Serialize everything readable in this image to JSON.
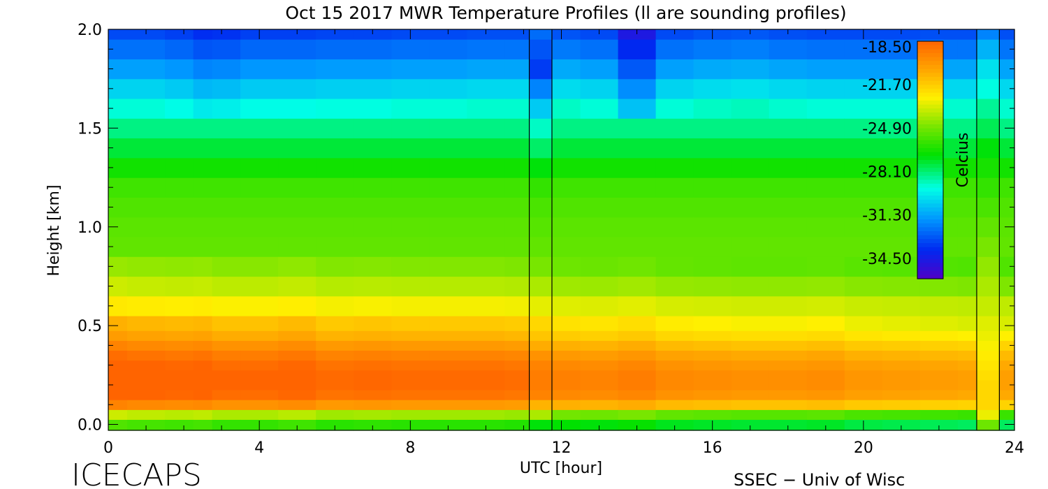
{
  "chart_data": {
    "type": "heatmap",
    "title": "Oct 15 2017 MWR Temperature Profiles (ll are sounding profiles)",
    "xlabel": "UTC [hour]",
    "ylabel": "Height [km]",
    "xlim": [
      0,
      24
    ],
    "ylim": [
      -0.03,
      2.0
    ],
    "xticks": [
      "0",
      "4",
      "8",
      "12",
      "16",
      "20",
      "24"
    ],
    "xtick_values": [
      0,
      4,
      8,
      12,
      16,
      20,
      24
    ],
    "yticks": [
      "0.0",
      "0.5",
      "1.0",
      "1.5",
      "2.0"
    ],
    "ytick_values": [
      0.0,
      0.5,
      1.0,
      1.5,
      2.0
    ],
    "colorbar": {
      "label": "Celcius",
      "range": [
        -36.0,
        -18.5
      ],
      "ticks": [
        "-18.50",
        "-21.70",
        "-24.90",
        "-28.10",
        "-31.30",
        "-34.50"
      ],
      "tick_values": [
        -18.5,
        -21.7,
        -24.9,
        -28.1,
        -31.3,
        -34.5
      ]
    },
    "sounding_profiles_utc": [
      11.15,
      11.75,
      23.0,
      23.6
    ],
    "x": [
      0,
      1,
      2,
      2.5,
      3,
      4,
      5,
      6,
      7,
      8,
      9,
      10,
      11,
      12,
      13,
      14,
      15,
      16,
      17,
      18,
      19,
      20,
      21,
      22,
      23,
      24
    ],
    "y": [
      0.0,
      0.05,
      0.1,
      0.15,
      0.2,
      0.25,
      0.3,
      0.35,
      0.4,
      0.45,
      0.5,
      0.6,
      0.7,
      0.8,
      0.9,
      1.0,
      1.1,
      1.2,
      1.3,
      1.4,
      1.5,
      1.6,
      1.7,
      1.8,
      1.9,
      2.0
    ],
    "z_profile_template": [
      -26.5,
      -24.5,
      -20.5,
      -19.3,
      -19.0,
      -19.0,
      -19.3,
      -19.8,
      -20.5,
      -21.3,
      -21.9,
      -23.0,
      -24.0,
      -24.8,
      -25.2,
      -25.3,
      -25.5,
      -25.8,
      -26.6,
      -27.5,
      -28.3,
      -29.2,
      -30.3,
      -31.4,
      -32.4,
      -33.2
    ],
    "z_surface_layer_offset_by_hour": [
      1.0,
      0.8,
      0.7,
      0.8,
      0.5,
      0.5,
      0.7,
      0.3,
      0.4,
      0.3,
      0.3,
      0.3,
      0.2,
      -0.4,
      -0.5,
      -0.3,
      -0.7,
      -0.8,
      -0.9,
      -0.9,
      -0.8,
      -1.1,
      -1.2,
      -1.3,
      -1.4,
      -1.4
    ],
    "z_upper_layer_offset_by_hour": [
      0.0,
      0.0,
      -0.2,
      -0.6,
      -0.5,
      -0.2,
      -0.2,
      -0.1,
      -0.1,
      0.0,
      0.0,
      0.1,
      0.1,
      0.2,
      0.0,
      -1.5,
      0.0,
      0.2,
      0.3,
      0.1,
      0.0,
      0.0,
      0.0,
      0.1,
      0.1,
      0.1
    ],
    "sounding_profile_a": [
      -27.0,
      -24.0,
      -21.0,
      -19.5,
      -19.3,
      -19.3,
      -19.5,
      -20.0,
      -20.8,
      -21.5,
      -22.0,
      -23.1,
      -24.0,
      -24.8,
      -25.2,
      -25.4,
      -25.6,
      -26.0,
      -27.0,
      -28.0,
      -29.0,
      -30.5,
      -32.0,
      -33.5,
      -33.0,
      -32.5
    ],
    "sounding_profile_b": [
      -25.0,
      -23.0,
      -22.0,
      -22.0,
      -22.0,
      -22.2,
      -22.4,
      -22.6,
      -22.8,
      -23.0,
      -23.2,
      -23.6,
      -24.0,
      -24.4,
      -24.8,
      -25.2,
      -25.6,
      -26.0,
      -26.5,
      -27.0,
      -27.8,
      -28.5,
      -29.3,
      -30.0,
      -31.0,
      -32.0
    ]
  },
  "footer": {
    "brand": "ICECAPS",
    "credit": "SSEC − Univ of Wisc"
  }
}
